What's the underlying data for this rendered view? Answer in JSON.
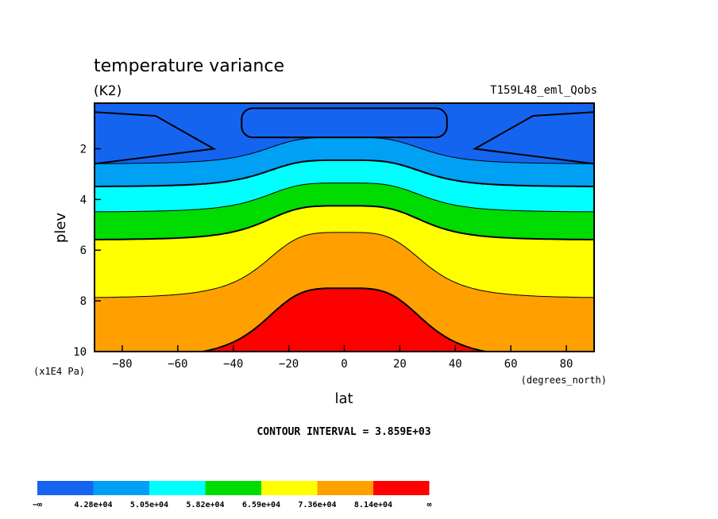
{
  "chart_data": {
    "type": "heatmap",
    "title": "temperature variance",
    "units": "(K2)",
    "case_name": "T159L48_eml_Qobs",
    "xlabel": "lat",
    "ylabel": "plev",
    "x_units": "(degrees_north)",
    "y_units": "(x1E4 Pa)",
    "xlim": [
      -90,
      90
    ],
    "ylim": [
      0.2,
      10
    ],
    "y_inverted": true,
    "x_ticks": [
      -80,
      -60,
      -40,
      -20,
      0,
      20,
      40,
      60,
      80
    ],
    "x_tick_labels": [
      "−80",
      "−60",
      "−40",
      "−20",
      "0",
      "20",
      "40",
      "60",
      "80"
    ],
    "y_ticks": [
      2,
      4,
      6,
      8,
      10
    ],
    "y_tick_labels": [
      "2",
      "4",
      "6",
      "8",
      "10"
    ],
    "contour_interval_label": "CONTOUR INTERVAL = 3.859E+03",
    "levels": [
      42800,
      50500,
      58200,
      65900,
      73600,
      81400
    ],
    "fill_colors": [
      "#1464f0",
      "#00a0f5",
      "#00ffff",
      "#00dc00",
      "#ffff00",
      "#ffa000",
      "#ff0000"
    ],
    "colorbar_labels": [
      "−∞",
      "4.28e+04",
      "5.05e+04",
      "5.82e+04",
      "6.59e+04",
      "7.36e+04",
      "8.14e+04",
      "∞"
    ],
    "level_depth_at_equator": [
      1.55,
      2.45,
      3.35,
      4.25,
      5.3,
      7.5
    ],
    "level_depth_at_pole": [
      2.6,
      3.5,
      4.5,
      5.6,
      7.9,
      10.3
    ],
    "top_polar_cap": {
      "center_lat": 0,
      "pressure_range": [
        0.4,
        1.55
      ],
      "half_width_lat": 37
    }
  }
}
